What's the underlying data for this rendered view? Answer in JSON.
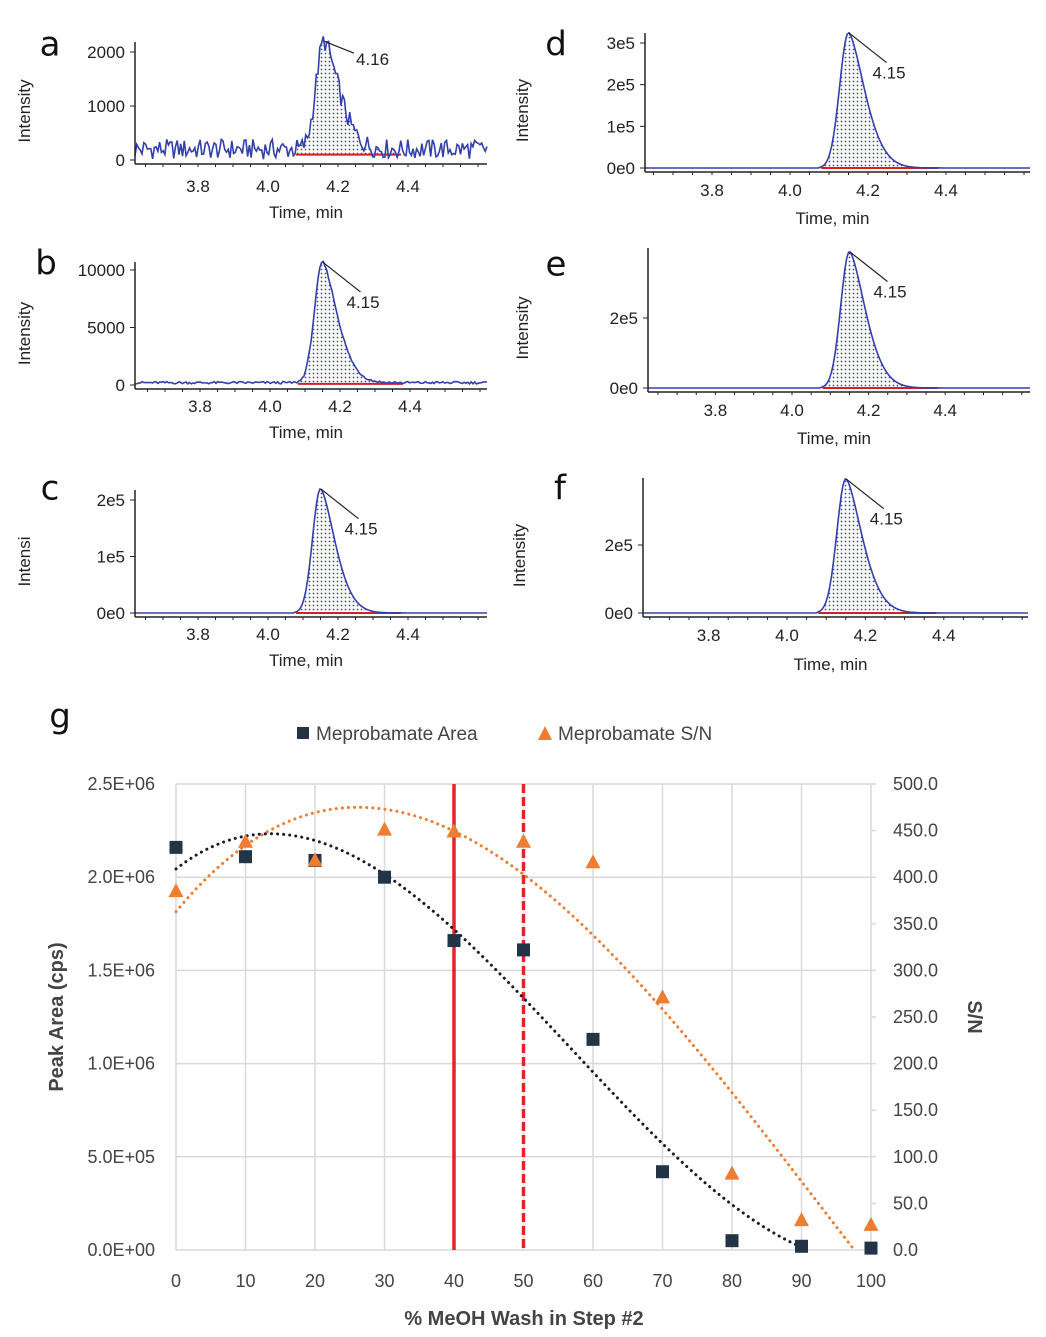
{
  "chart_data": [
    {
      "type": "line",
      "label": "a",
      "ylabel": "Intensity",
      "xlabel": "Time, min",
      "xticks": [
        "3.8",
        "4.0",
        "4.2",
        "4.4"
      ],
      "yticks": [
        {
          "label": "0",
          "value": 0
        },
        {
          "label": "1000",
          "value": 1000
        },
        {
          "label": "2000",
          "value": 2000
        }
      ],
      "peak_rt": "4.16",
      "peak_time": 4.16,
      "peak_height": 2200,
      "baseline": 200,
      "noisy": true
    },
    {
      "type": "line",
      "label": "b",
      "ylabel": "Intensity",
      "xlabel": "Time, min",
      "xticks": [
        "3.8",
        "4.0",
        "4.2",
        "4.4"
      ],
      "yticks": [
        {
          "label": "0",
          "value": 0
        },
        {
          "label": "5000",
          "value": 5000
        },
        {
          "label": "10000",
          "value": 10000
        }
      ],
      "peak_rt": "4.15",
      "peak_time": 4.15,
      "peak_height": 10700,
      "baseline": 200,
      "noisy": true
    },
    {
      "type": "line",
      "label": "c",
      "ylabel": "Intensi",
      "xlabel": "Time, min",
      "xticks": [
        "3.8",
        "4.0",
        "4.2",
        "4.4"
      ],
      "yticks": [
        {
          "label": "0e0",
          "value": 0
        },
        {
          "label": "1e5",
          "value": 100000
        },
        {
          "label": "2e5",
          "value": 200000
        }
      ],
      "peak_rt": "4.15",
      "peak_time": 4.15,
      "peak_height": 220000,
      "baseline": 0,
      "noisy": false
    },
    {
      "type": "line",
      "label": "d",
      "ylabel": "Intensity",
      "xlabel": "Time, min",
      "xticks": [
        "3.8",
        "4.0",
        "4.2",
        "4.4"
      ],
      "yticks": [
        {
          "label": "0e0",
          "value": 0
        },
        {
          "label": "1e5",
          "value": 100000
        },
        {
          "label": "2e5",
          "value": 200000
        },
        {
          "label": "3e5",
          "value": 300000
        }
      ],
      "peak_rt": "4.15",
      "peak_time": 4.15,
      "peak_height": 325000,
      "baseline": 0,
      "noisy": false
    },
    {
      "type": "line",
      "label": "e",
      "ylabel": "Intensity",
      "xlabel": "Time, min",
      "xticks": [
        "3.8",
        "4.0",
        "4.2",
        "4.4"
      ],
      "yticks": [
        {
          "label": "0e0",
          "value": 0
        },
        {
          "label": "2e5",
          "value": 200000
        }
      ],
      "peak_rt": "4.15",
      "peak_time": 4.15,
      "peak_height": 390000,
      "baseline": 0,
      "noisy": false
    },
    {
      "type": "line",
      "label": "f",
      "ylabel": "Intensity",
      "xlabel": "Time, min",
      "xticks": [
        "3.8",
        "4.0",
        "4.2",
        "4.4"
      ],
      "yticks": [
        {
          "label": "0e0",
          "value": 0
        },
        {
          "label": "2e5",
          "value": 200000
        }
      ],
      "peak_rt": "4.15",
      "peak_time": 4.15,
      "peak_height": 395000,
      "baseline": 0,
      "noisy": false
    },
    {
      "type": "scatter",
      "label": "g",
      "xlabel": "% MeOH Wash in Step #2",
      "ylabel": "Peak Area (cps)",
      "y2label": "S/N",
      "x": [
        0,
        10,
        20,
        30,
        40,
        50,
        60,
        70,
        80,
        90,
        100
      ],
      "xticks": [
        "0",
        "10",
        "20",
        "30",
        "40",
        "50",
        "60",
        "70",
        "80",
        "90",
        "100"
      ],
      "xlim": [
        0,
        100
      ],
      "ylim": [
        0,
        2500000
      ],
      "y2lim": [
        0,
        500
      ],
      "yticks": [
        "0.0E+00",
        "5.0E+05",
        "1.0E+06",
        "1.5E+06",
        "2.0E+06",
        "2.5E+06"
      ],
      "y2ticks": [
        "0.0",
        "50.0",
        "100.0",
        "150.0",
        "200.0",
        "250.0",
        "300.0",
        "350.0",
        "400.0",
        "450.0",
        "500.0"
      ],
      "grid": true,
      "legend_position": "top",
      "series": [
        {
          "name": "Meprobamate Area",
          "axis": "left",
          "marker": "square",
          "color": "#243447",
          "trendline": "polynomial",
          "values": [
            2160000,
            2110000,
            2090000,
            2000000,
            1660000,
            1610000,
            1130000,
            420000,
            50000,
            20000,
            10000
          ]
        },
        {
          "name": "Meprobamate S/N",
          "axis": "right",
          "marker": "triangle",
          "color": "#ed7d31",
          "trendline": "polynomial",
          "values": [
            385,
            438,
            418,
            451,
            449,
            438,
            416,
            271,
            82,
            32,
            27
          ]
        }
      ],
      "reference_lines": [
        {
          "x": 40,
          "style": "solid",
          "color": "#e0262b"
        },
        {
          "x": 50,
          "style": "dashed",
          "color": "#e0262b"
        }
      ]
    }
  ]
}
